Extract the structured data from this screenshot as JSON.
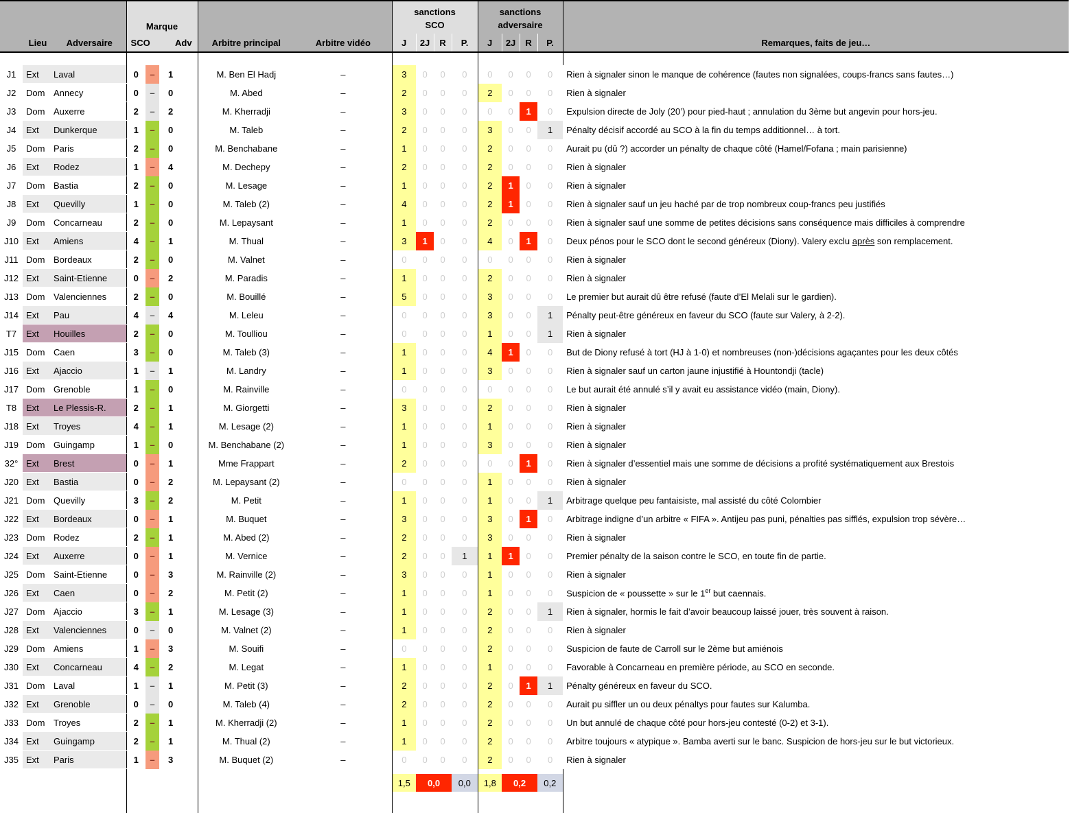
{
  "header": {
    "lieu": "Lieu",
    "adversaire": "Adversaire",
    "marque": "Marque",
    "sco": "SCO",
    "adv": "Adv",
    "arbitre_principal": "Arbitre principal",
    "arbitre_video": "Arbitre vidéo",
    "sanctions": "sanctions",
    "sanctions_sco": "SCO",
    "sanctions_adv": "adversaire",
    "subcols": [
      "J",
      "2J",
      "R",
      "P."
    ],
    "remarques": "Remarques, faits de jeu…"
  },
  "colors": {
    "win": "#a5d23a",
    "loss": "#f69b7d",
    "draw": "#e5e5e5",
    "coupe_row": "#c4a0b2",
    "ext_row": "#eaeaea",
    "sanction_yellow": "#ffff9b",
    "sanction_red": "#ff2600",
    "sanction_p_grey": "#e7e7e7",
    "summary_grey": "#d2d7e5",
    "header_dark": "#b3b3b3",
    "header_light": "#dedede"
  },
  "rows": [
    {
      "id": "J1",
      "lieu": "Ext",
      "adversaire": "Laval",
      "type": "ext",
      "score_sco": 0,
      "score_adv": 1,
      "result": "loss",
      "arbitre": "M. Ben El Hadj",
      "video": "–",
      "sco": [
        3,
        0,
        0,
        0
      ],
      "adv": [
        0,
        0,
        0,
        0
      ],
      "remarque": "Rien à signaler sinon le manque de cohérence (fautes non signalées, coups-francs sans fautes…)"
    },
    {
      "id": "J2",
      "lieu": "Dom",
      "adversaire": "Annecy",
      "type": "dom",
      "score_sco": 0,
      "score_adv": 0,
      "result": "draw",
      "arbitre": "M. Abed",
      "video": "–",
      "sco": [
        2,
        0,
        0,
        0
      ],
      "adv": [
        2,
        0,
        0,
        0
      ],
      "remarque": "Rien à signaler"
    },
    {
      "id": "J3",
      "lieu": "Dom",
      "adversaire": "Auxerre",
      "type": "dom",
      "score_sco": 2,
      "score_adv": 2,
      "result": "draw",
      "arbitre": "M. Kherradji",
      "video": "–",
      "sco": [
        3,
        0,
        0,
        0
      ],
      "adv": [
        0,
        0,
        1,
        0
      ],
      "remarque": "Expulsion directe de Joly (20’) pour pied-haut ; annulation du 3ème but angevin pour hors-jeu."
    },
    {
      "id": "J4",
      "lieu": "Ext",
      "adversaire": "Dunkerque",
      "type": "ext",
      "score_sco": 1,
      "score_adv": 0,
      "result": "win",
      "arbitre": "M. Taleb",
      "video": "–",
      "sco": [
        2,
        0,
        0,
        0
      ],
      "adv": [
        3,
        0,
        0,
        1
      ],
      "remarque": "Pénalty décisif accordé au SCO à la fin du temps additionnel… à tort."
    },
    {
      "id": "J5",
      "lieu": "Dom",
      "adversaire": "Paris",
      "type": "dom",
      "score_sco": 2,
      "score_adv": 0,
      "result": "win",
      "arbitre": "M. Benchabane",
      "video": "–",
      "sco": [
        1,
        0,
        0,
        0
      ],
      "adv": [
        2,
        0,
        0,
        0
      ],
      "remarque": "Aurait pu (dû ?) accorder un pénalty de chaque côté (Hamel/Fofana ; main parisienne)"
    },
    {
      "id": "J6",
      "lieu": "Ext",
      "adversaire": "Rodez",
      "type": "ext",
      "score_sco": 1,
      "score_adv": 4,
      "result": "loss",
      "arbitre": "M. Dechepy",
      "video": "–",
      "sco": [
        2,
        0,
        0,
        0
      ],
      "adv": [
        2,
        0,
        0,
        0
      ],
      "remarque": "Rien à signaler"
    },
    {
      "id": "J7",
      "lieu": "Dom",
      "adversaire": "Bastia",
      "type": "dom",
      "score_sco": 2,
      "score_adv": 0,
      "result": "win",
      "arbitre": "M. Lesage",
      "video": "–",
      "sco": [
        1,
        0,
        0,
        0
      ],
      "adv": [
        2,
        1,
        0,
        0
      ],
      "remarque": "Rien à signaler"
    },
    {
      "id": "J8",
      "lieu": "Ext",
      "adversaire": "Quevilly",
      "type": "ext",
      "score_sco": 1,
      "score_adv": 0,
      "result": "win",
      "arbitre": "M. Taleb (2)",
      "video": "–",
      "sco": [
        4,
        0,
        0,
        0
      ],
      "adv": [
        2,
        1,
        0,
        0
      ],
      "remarque": "Rien à signaler sauf un jeu haché par de trop nombreux coup-francs peu justifiés"
    },
    {
      "id": "J9",
      "lieu": "Dom",
      "adversaire": "Concarneau",
      "type": "dom",
      "score_sco": 2,
      "score_adv": 0,
      "result": "win",
      "arbitre": "M. Lepaysant",
      "video": "–",
      "sco": [
        1,
        0,
        0,
        0
      ],
      "adv": [
        2,
        0,
        0,
        0
      ],
      "remarque": "Rien à signaler sauf une somme de petites décisions sans conséquence mais difficiles à comprendre"
    },
    {
      "id": "J10",
      "lieu": "Ext",
      "adversaire": "Amiens",
      "type": "ext",
      "score_sco": 4,
      "score_adv": 1,
      "result": "win",
      "arbitre": "M. Thual",
      "video": "–",
      "sco": [
        3,
        1,
        0,
        0
      ],
      "adv": [
        4,
        0,
        1,
        0
      ],
      "remarque": [
        "Deux pénos pour le SCO dont le second généreux (Diony). Valery exclu ",
        {
          "u": "après"
        },
        " son remplacement."
      ]
    },
    {
      "id": "J11",
      "lieu": "Dom",
      "adversaire": "Bordeaux",
      "type": "dom",
      "score_sco": 2,
      "score_adv": 0,
      "result": "win",
      "arbitre": "M. Valnet",
      "video": "–",
      "sco": [
        0,
        0,
        0,
        0
      ],
      "adv": [
        0,
        0,
        0,
        0
      ],
      "remarque": "Rien à signaler"
    },
    {
      "id": "J12",
      "lieu": "Ext",
      "adversaire": "Saint-Etienne",
      "type": "ext",
      "score_sco": 0,
      "score_adv": 2,
      "result": "loss",
      "arbitre": "M. Paradis",
      "video": "–",
      "sco": [
        1,
        0,
        0,
        0
      ],
      "adv": [
        2,
        0,
        0,
        0
      ],
      "remarque": "Rien à signaler"
    },
    {
      "id": "J13",
      "lieu": "Dom",
      "adversaire": "Valenciennes",
      "type": "dom",
      "score_sco": 2,
      "score_adv": 0,
      "result": "win",
      "arbitre": "M. Bouillé",
      "video": "–",
      "sco": [
        5,
        0,
        0,
        0
      ],
      "adv": [
        3,
        0,
        0,
        0
      ],
      "remarque": "Le premier but aurait dû être refusé (faute d’El Melali sur le gardien)."
    },
    {
      "id": "J14",
      "lieu": "Ext",
      "adversaire": "Pau",
      "type": "ext",
      "score_sco": 4,
      "score_adv": 4,
      "result": "draw",
      "arbitre": "M. Leleu",
      "video": "–",
      "sco": [
        0,
        0,
        0,
        0
      ],
      "adv": [
        3,
        0,
        0,
        1
      ],
      "remarque": "Pénalty peut-être généreux en faveur du SCO (faute sur Valery, à 2-2)."
    },
    {
      "id": "T7",
      "lieu": "Ext",
      "adversaire": "Houilles",
      "type": "coupe",
      "score_sco": 2,
      "score_adv": 0,
      "result": "win",
      "arbitre": "M. Toulliou",
      "video": "–",
      "sco": [
        0,
        0,
        0,
        0
      ],
      "adv": [
        1,
        0,
        0,
        1
      ],
      "remarque": "Rien à signaler"
    },
    {
      "id": "J15",
      "lieu": "Dom",
      "adversaire": "Caen",
      "type": "dom",
      "score_sco": 3,
      "score_adv": 0,
      "result": "win",
      "arbitre": "M. Taleb (3)",
      "video": "–",
      "sco": [
        1,
        0,
        0,
        0
      ],
      "adv": [
        4,
        1,
        0,
        0
      ],
      "remarque": "But de Diony refusé à tort (HJ à 1-0) et nombreuses (non-)décisions agaçantes pour les deux côtés"
    },
    {
      "id": "J16",
      "lieu": "Ext",
      "adversaire": "Ajaccio",
      "type": "ext",
      "score_sco": 1,
      "score_adv": 1,
      "result": "draw",
      "arbitre": "M. Landry",
      "video": "–",
      "sco": [
        1,
        0,
        0,
        0
      ],
      "adv": [
        3,
        0,
        0,
        0
      ],
      "remarque": "Rien à signaler sauf un carton jaune injustifié à Hountondji (tacle)"
    },
    {
      "id": "J17",
      "lieu": "Dom",
      "adversaire": "Grenoble",
      "type": "dom",
      "score_sco": 1,
      "score_adv": 0,
      "result": "win",
      "arbitre": "M. Rainville",
      "video": "–",
      "sco": [
        0,
        0,
        0,
        0
      ],
      "adv": [
        0,
        0,
        0,
        0
      ],
      "remarque": "Le but aurait été annulé s’il y avait eu assistance vidéo (main, Diony)."
    },
    {
      "id": "T8",
      "lieu": "Ext",
      "adversaire": "Le Plessis-R.",
      "type": "coupe",
      "score_sco": 2,
      "score_adv": 1,
      "result": "win",
      "arbitre": "M. Giorgetti",
      "video": "–",
      "sco": [
        3,
        0,
        0,
        0
      ],
      "adv": [
        2,
        0,
        0,
        0
      ],
      "remarque": "Rien à signaler"
    },
    {
      "id": "J18",
      "lieu": "Ext",
      "adversaire": "Troyes",
      "type": "ext",
      "score_sco": 4,
      "score_adv": 1,
      "result": "win",
      "arbitre": "M. Lesage (2)",
      "video": "–",
      "sco": [
        1,
        0,
        0,
        0
      ],
      "adv": [
        1,
        0,
        0,
        0
      ],
      "remarque": "Rien à signaler"
    },
    {
      "id": "J19",
      "lieu": "Dom",
      "adversaire": "Guingamp",
      "type": "dom",
      "score_sco": 1,
      "score_adv": 0,
      "result": "win",
      "arbitre": "M. Benchabane (2)",
      "video": "–",
      "sco": [
        1,
        0,
        0,
        0
      ],
      "adv": [
        3,
        0,
        0,
        0
      ],
      "remarque": "Rien à signaler"
    },
    {
      "id": "32°",
      "lieu": "Ext",
      "adversaire": "Brest",
      "type": "coupe",
      "score_sco": 0,
      "score_adv": 1,
      "result": "loss",
      "arbitre": "Mme Frappart",
      "video": "–",
      "sco": [
        2,
        0,
        0,
        0
      ],
      "adv": [
        0,
        0,
        1,
        0
      ],
      "remarque": "Rien à signaler d’essentiel mais une somme de décisions a profité systématiquement aux Brestois"
    },
    {
      "id": "J20",
      "lieu": "Ext",
      "adversaire": "Bastia",
      "type": "ext",
      "score_sco": 0,
      "score_adv": 2,
      "result": "loss",
      "arbitre": "M. Lepaysant (2)",
      "video": "–",
      "sco": [
        0,
        0,
        0,
        0
      ],
      "adv": [
        1,
        0,
        0,
        0
      ],
      "remarque": "Rien à signaler"
    },
    {
      "id": "J21",
      "lieu": "Dom",
      "adversaire": "Quevilly",
      "type": "dom",
      "score_sco": 3,
      "score_adv": 2,
      "result": "win",
      "arbitre": "M. Petit",
      "video": "–",
      "sco": [
        1,
        0,
        0,
        0
      ],
      "adv": [
        1,
        0,
        0,
        1
      ],
      "remarque": "Arbitrage quelque peu fantaisiste, mal assisté du côté Colombier"
    },
    {
      "id": "J22",
      "lieu": "Ext",
      "adversaire": "Bordeaux",
      "type": "ext",
      "score_sco": 0,
      "score_adv": 1,
      "result": "loss",
      "arbitre": "M. Buquet",
      "video": "–",
      "sco": [
        3,
        0,
        0,
        0
      ],
      "adv": [
        3,
        0,
        1,
        0
      ],
      "remarque": "Arbitrage indigne d’un arbitre « FIFA ». Antijeu pas puni, pénalties pas sifflés, expulsion trop sévère…"
    },
    {
      "id": "J23",
      "lieu": "Dom",
      "adversaire": "Rodez",
      "type": "dom",
      "score_sco": 2,
      "score_adv": 1,
      "result": "win",
      "arbitre": "M. Abed (2)",
      "video": "–",
      "sco": [
        2,
        0,
        0,
        0
      ],
      "adv": [
        3,
        0,
        0,
        0
      ],
      "remarque": "Rien à signaler"
    },
    {
      "id": "J24",
      "lieu": "Ext",
      "adversaire": "Auxerre",
      "type": "ext",
      "score_sco": 0,
      "score_adv": 1,
      "result": "loss",
      "arbitre": "M. Vernice",
      "video": "–",
      "sco": [
        2,
        0,
        0,
        1
      ],
      "adv": [
        1,
        1,
        0,
        0
      ],
      "remarque": "Premier pénalty de la saison contre le SCO, en toute fin de partie."
    },
    {
      "id": "J25",
      "lieu": "Dom",
      "adversaire": "Saint-Etienne",
      "type": "dom",
      "score_sco": 0,
      "score_adv": 3,
      "result": "loss",
      "arbitre": "M. Rainville (2)",
      "video": "–",
      "sco": [
        3,
        0,
        0,
        0
      ],
      "adv": [
        1,
        0,
        0,
        0
      ],
      "remarque": "Rien à signaler"
    },
    {
      "id": "J26",
      "lieu": "Ext",
      "adversaire": "Caen",
      "type": "ext",
      "score_sco": 0,
      "score_adv": 2,
      "result": "loss",
      "arbitre": "M. Petit (2)",
      "video": "–",
      "sco": [
        1,
        0,
        0,
        0
      ],
      "adv": [
        1,
        0,
        0,
        0
      ],
      "remarque": [
        "Suspicion de « poussette » sur le 1",
        {
          "sup": "er"
        },
        " but caennais."
      ]
    },
    {
      "id": "J27",
      "lieu": "Dom",
      "adversaire": "Ajaccio",
      "type": "dom",
      "score_sco": 3,
      "score_adv": 1,
      "result": "win",
      "arbitre": "M. Lesage (3)",
      "video": "–",
      "sco": [
        1,
        0,
        0,
        0
      ],
      "adv": [
        2,
        0,
        0,
        1
      ],
      "remarque": "Rien à signaler, hormis le fait d’avoir beaucoup laissé jouer, très souvent à raison."
    },
    {
      "id": "J28",
      "lieu": "Ext",
      "adversaire": "Valenciennes",
      "type": "ext",
      "score_sco": 0,
      "score_adv": 0,
      "result": "draw",
      "arbitre": "M. Valnet (2)",
      "video": "–",
      "sco": [
        1,
        0,
        0,
        0
      ],
      "adv": [
        2,
        0,
        0,
        0
      ],
      "remarque": "Rien à signaler"
    },
    {
      "id": "J29",
      "lieu": "Dom",
      "adversaire": "Amiens",
      "type": "dom",
      "score_sco": 1,
      "score_adv": 3,
      "result": "loss",
      "arbitre": "M. Souifi",
      "video": "–",
      "sco": [
        0,
        0,
        0,
        0
      ],
      "adv": [
        2,
        0,
        0,
        0
      ],
      "remarque": "Suspicion de faute de Carroll sur le 2ème but amiénois"
    },
    {
      "id": "J30",
      "lieu": "Ext",
      "adversaire": "Concarneau",
      "type": "ext",
      "score_sco": 4,
      "score_adv": 2,
      "result": "win",
      "arbitre": "M. Legat",
      "video": "–",
      "sco": [
        1,
        0,
        0,
        0
      ],
      "adv": [
        1,
        0,
        0,
        0
      ],
      "remarque": "Favorable à Concarneau en première période, au SCO en seconde."
    },
    {
      "id": "J31",
      "lieu": "Dom",
      "adversaire": "Laval",
      "type": "dom",
      "score_sco": 1,
      "score_adv": 1,
      "result": "draw",
      "arbitre": "M. Petit (3)",
      "video": "–",
      "sco": [
        2,
        0,
        0,
        0
      ],
      "adv": [
        2,
        0,
        1,
        1
      ],
      "remarque": "Pénalty généreux en faveur du SCO."
    },
    {
      "id": "J32",
      "lieu": "Ext",
      "adversaire": "Grenoble",
      "type": "ext",
      "score_sco": 0,
      "score_adv": 0,
      "result": "draw",
      "arbitre": "M. Taleb (4)",
      "video": "–",
      "sco": [
        2,
        0,
        0,
        0
      ],
      "adv": [
        2,
        0,
        0,
        0
      ],
      "remarque": "Aurait pu siffler un ou deux pénaltys pour fautes sur Kalumba."
    },
    {
      "id": "J33",
      "lieu": "Dom",
      "adversaire": "Troyes",
      "type": "dom",
      "score_sco": 2,
      "score_adv": 1,
      "result": "win",
      "arbitre": "M. Kherradji (2)",
      "video": "–",
      "sco": [
        1,
        0,
        0,
        0
      ],
      "adv": [
        2,
        0,
        0,
        0
      ],
      "remarque": "Un but annulé de chaque côté pour hors-jeu contesté (0-2) et 3-1)."
    },
    {
      "id": "J34",
      "lieu": "Ext",
      "adversaire": "Guingamp",
      "type": "ext",
      "score_sco": 2,
      "score_adv": 1,
      "result": "win",
      "arbitre": "M. Thual (2)",
      "video": "–",
      "sco": [
        1,
        0,
        0,
        0
      ],
      "adv": [
        2,
        0,
        0,
        0
      ],
      "remarque": "Arbitre toujours « atypique ». Bamba averti sur le banc. Suspicion de hors-jeu sur le but victorieux."
    },
    {
      "id": "J35",
      "lieu": "Ext",
      "adversaire": "Paris",
      "type": "ext",
      "score_sco": 1,
      "score_adv": 3,
      "result": "loss",
      "arbitre": "M. Buquet (2)",
      "video": "–",
      "sco": [
        0,
        0,
        0,
        0
      ],
      "adv": [
        2,
        0,
        0,
        0
      ],
      "remarque": "Rien à signaler"
    }
  ],
  "summary": {
    "sco": [
      "1,5",
      "0,0",
      "0,0"
    ],
    "adv": [
      "1,8",
      "0,2",
      "0,2"
    ]
  }
}
